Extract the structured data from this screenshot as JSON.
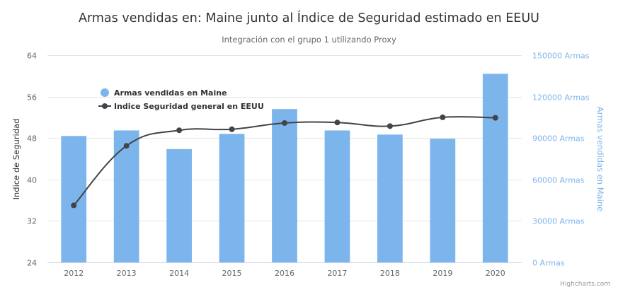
{
  "chart_data": {
    "type": "bar",
    "title": "Armas vendidas en: Maine junto al Índice de Seguridad estimado en EEUU",
    "subtitle": "Integración con el grupo 1 utilizando Proxy",
    "categories": [
      "2012",
      "2013",
      "2014",
      "2015",
      "2016",
      "2017",
      "2018",
      "2019",
      "2020"
    ],
    "left_axis": {
      "title": "Indice de Seguridad",
      "range": [
        24,
        64
      ],
      "ticks": [
        24,
        32,
        40,
        48,
        56,
        64
      ]
    },
    "right_axis": {
      "title": "Armas vendidas en Maine",
      "range": [
        0,
        150000
      ],
      "ticks": [
        0,
        30000,
        60000,
        90000,
        120000,
        150000
      ],
      "tick_suffix": " Armas"
    },
    "series": [
      {
        "name": "Armas vendidas en Maine",
        "type": "column",
        "axis": "right",
        "color": "#7cb5ec",
        "values": [
          91500,
          95500,
          82000,
          93000,
          111000,
          95500,
          92500,
          89500,
          136500
        ]
      },
      {
        "name": "Indice Seguridad general en EEUU",
        "type": "spline",
        "axis": "left",
        "color": "#434348",
        "values": [
          35.0,
          46.5,
          49.5,
          49.7,
          50.9,
          51.0,
          50.3,
          52.0,
          51.9
        ]
      }
    ],
    "legend_position": "top-left",
    "grid": true
  },
  "credits": "Highcharts.com"
}
